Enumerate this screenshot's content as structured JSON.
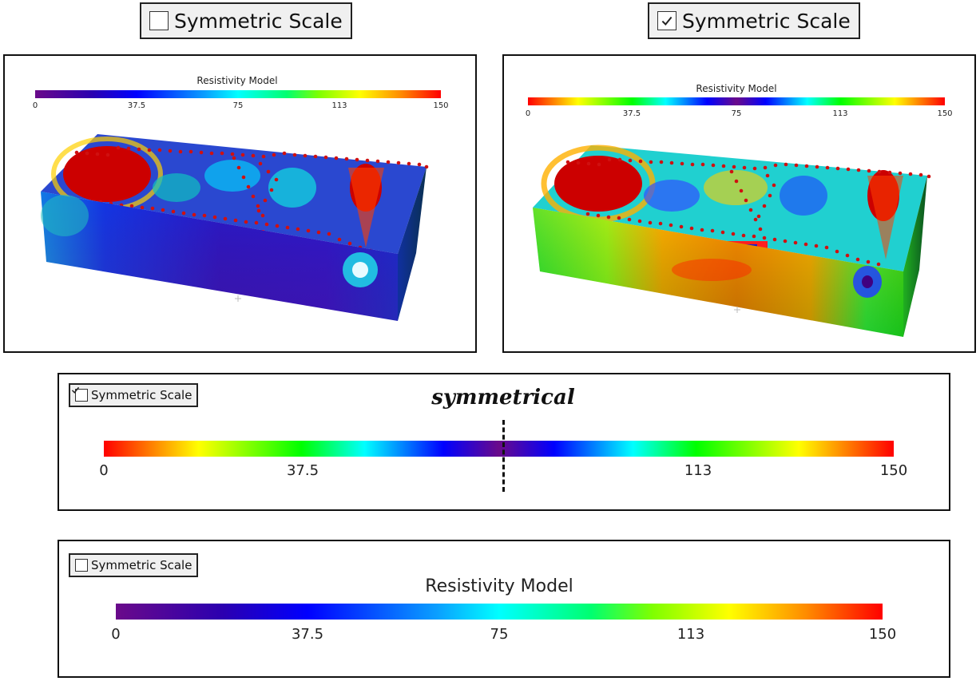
{
  "colorbar_title": "Resistivity Model",
  "checkbox_label": "Symmetric Scale",
  "ticks": [
    "0",
    "37.5",
    "75",
    "113",
    "150"
  ],
  "annotation": "symmetrical",
  "top_left": {
    "checked": false
  },
  "top_right": {
    "checked": true
  },
  "detail_symmetric": {
    "checked": true,
    "visible_ticks": [
      "0",
      "37.5",
      "113",
      "150"
    ]
  },
  "detail_default": {
    "checked": false
  },
  "colors": {
    "electrode_dots": "#d01010",
    "panel_border": "#111111",
    "checkbox_bg": "#f0f0f0"
  },
  "icons": [
    "checkmark-icon",
    "dashed-midline"
  ]
}
